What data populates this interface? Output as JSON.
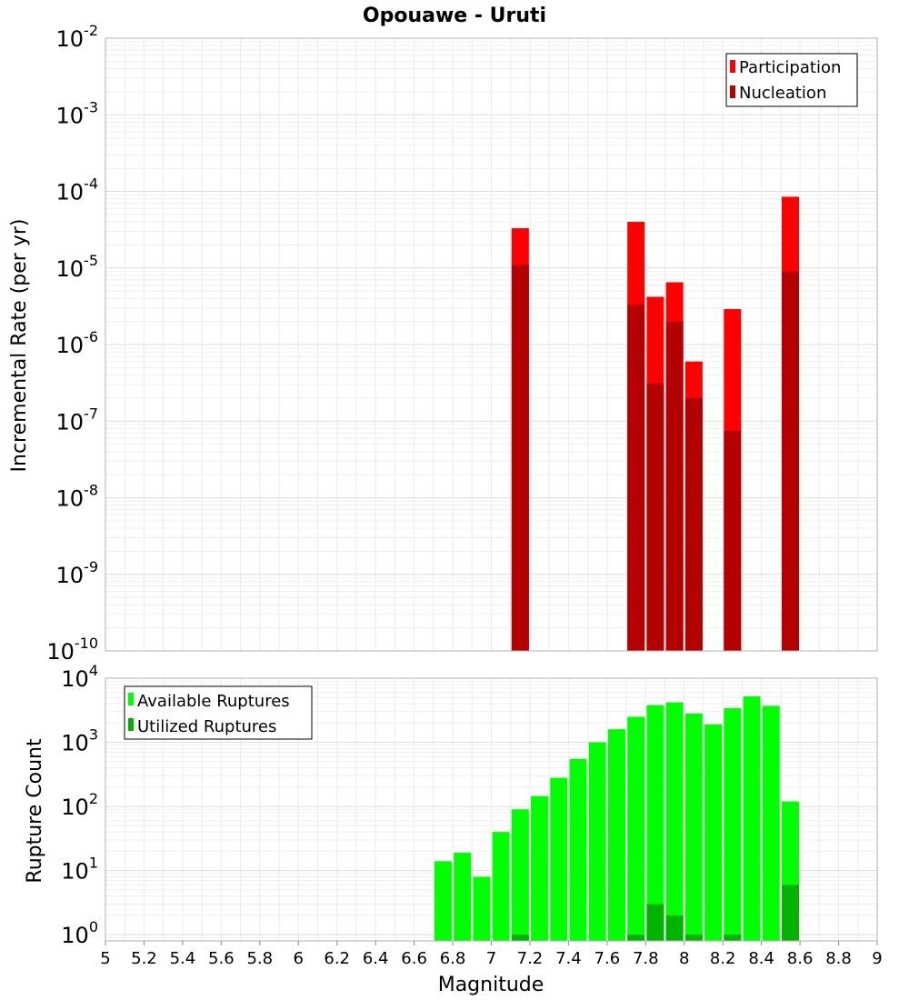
{
  "title": "Opouawe - Uruti",
  "xlabel": "Magnitude",
  "x_ticks": [
    "5",
    "5.2",
    "5.4",
    "5.6",
    "5.8",
    "6",
    "6.2",
    "6.4",
    "6.6",
    "6.8",
    "7",
    "7.2",
    "7.4",
    "7.6",
    "7.8",
    "8",
    "8.2",
    "8.4",
    "8.6",
    "8.8",
    "9"
  ],
  "colors": {
    "participation": "#ff0000",
    "nucleation": "#b30000",
    "available": "#00ff00",
    "utilized": "#00b300",
    "grid": "#e6e6e6",
    "frame": "#b0b0b0"
  },
  "chart_data": [
    {
      "type": "bar",
      "name": "rate",
      "ylabel": "Incremental Rate (per yr)",
      "yscale": "log",
      "ylim": [
        1e-10,
        0.01
      ],
      "xlim": [
        5,
        9
      ],
      "y_tick_exponents": [
        "-10",
        "-9",
        "-8",
        "-7",
        "-6",
        "-5",
        "-4",
        "-3",
        "-2"
      ],
      "legend": {
        "position": "top-right",
        "entries": [
          "Participation",
          "Nucleation"
        ]
      },
      "series": [
        {
          "name": "Participation",
          "x": [
            7.15,
            7.75,
            7.85,
            7.95,
            8.05,
            8.25,
            8.55
          ],
          "values": [
            3.3e-05,
            4e-05,
            4.2e-06,
            6.5e-06,
            6e-07,
            2.9e-06,
            8.5e-05
          ]
        },
        {
          "name": "Nucleation",
          "x": [
            7.15,
            7.75,
            7.85,
            7.95,
            8.05,
            8.25,
            8.55
          ],
          "values": [
            1.1e-05,
            3.3e-06,
            3.1e-07,
            2e-06,
            2e-07,
            7.5e-08,
            9e-06
          ]
        }
      ]
    },
    {
      "type": "bar",
      "name": "count",
      "ylabel": "Rupture Count",
      "yscale": "log",
      "ylim": [
        0.8,
        10000
      ],
      "xlim": [
        5,
        9
      ],
      "y_tick_exponents": [
        "0",
        "1",
        "2",
        "3",
        "4"
      ],
      "legend": {
        "position": "top-left",
        "entries": [
          "Available Ruptures",
          "Utilized Ruptures"
        ]
      },
      "series": [
        {
          "name": "Available Ruptures",
          "x": [
            6.75,
            6.85,
            6.95,
            7.05,
            7.15,
            7.25,
            7.35,
            7.45,
            7.55,
            7.65,
            7.75,
            7.85,
            7.95,
            8.05,
            8.15,
            8.25,
            8.35,
            8.45,
            8.55
          ],
          "values": [
            14,
            19,
            8,
            40,
            90,
            145,
            280,
            550,
            1000,
            1600,
            2500,
            3800,
            4200,
            2800,
            1900,
            3400,
            5200,
            3700,
            120
          ]
        },
        {
          "name": "Utilized Ruptures",
          "x": [
            7.15,
            7.75,
            7.85,
            7.95,
            8.05,
            8.25,
            8.55
          ],
          "values": [
            1,
            1,
            3,
            2,
            1,
            1,
            6
          ]
        }
      ]
    }
  ]
}
